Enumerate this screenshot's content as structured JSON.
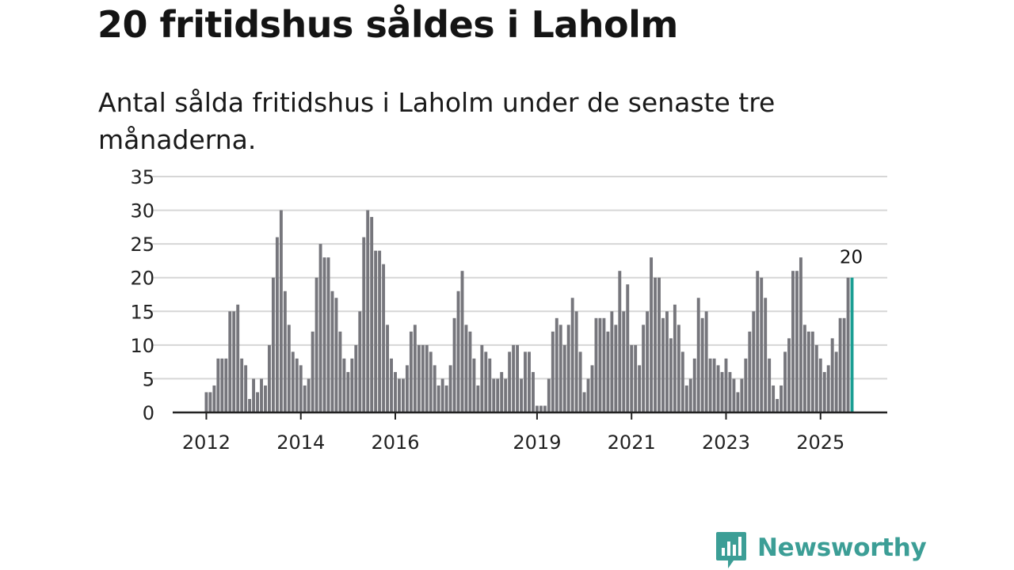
{
  "title": "20 fritidshus såldes i Laholm",
  "subtitle": "Antal sålda fritidshus i Laholm under de senaste tre månaderna.",
  "brand": {
    "name": "Newsworthy",
    "icon": "newsworthy-logo-icon",
    "color": "#3c9e96"
  },
  "colors": {
    "bar": "#76767c",
    "highlight": "#1a9e93",
    "grid": "#d6d6d6",
    "axis": "#222222"
  },
  "chart_data": {
    "type": "bar",
    "title": "20 fritidshus såldes i Laholm",
    "xlabel": "",
    "ylabel": "",
    "ylim": [
      0,
      35
    ],
    "yticks": [
      "0",
      "5",
      "10",
      "15",
      "20",
      "25",
      "30",
      "35"
    ],
    "xtick_labels": [
      {
        "label": "2012",
        "index": 0
      },
      {
        "label": "2014",
        "index": 24
      },
      {
        "label": "2016",
        "index": 48
      },
      {
        "label": "2019",
        "index": 84
      },
      {
        "label": "2021",
        "index": 108
      },
      {
        "label": "2023",
        "index": 132
      },
      {
        "label": "2025",
        "index": 156
      }
    ],
    "start": "2012-01",
    "highlight_label": "20",
    "values": [
      3,
      3,
      4,
      8,
      8,
      8,
      15,
      15,
      16,
      8,
      7,
      2,
      5,
      3,
      5,
      4,
      10,
      20,
      26,
      30,
      18,
      13,
      9,
      8,
      7,
      4,
      5,
      12,
      20,
      25,
      23,
      23,
      18,
      17,
      12,
      8,
      6,
      8,
      10,
      15,
      26,
      30,
      29,
      24,
      24,
      22,
      13,
      8,
      6,
      5,
      5,
      7,
      12,
      13,
      10,
      10,
      10,
      9,
      7,
      4,
      5,
      4,
      7,
      14,
      18,
      21,
      13,
      12,
      8,
      4,
      10,
      9,
      8,
      5,
      5,
      6,
      5,
      9,
      10,
      10,
      5,
      9,
      9,
      6,
      1,
      1,
      1,
      5,
      12,
      14,
      13,
      10,
      13,
      17,
      15,
      9,
      3,
      5,
      7,
      14,
      14,
      14,
      12,
      15,
      13,
      21,
      15,
      19,
      10,
      10,
      7,
      13,
      15,
      23,
      20,
      20,
      14,
      15,
      11,
      16,
      13,
      9,
      4,
      5,
      8,
      17,
      14,
      15,
      8,
      8,
      7,
      6,
      8,
      6,
      5,
      3,
      5,
      8,
      12,
      15,
      21,
      20,
      17,
      8,
      4,
      2,
      4,
      9,
      11,
      21,
      21,
      23,
      13,
      12,
      12,
      10,
      8,
      6,
      7,
      11,
      9,
      14,
      14,
      20,
      20
    ]
  }
}
